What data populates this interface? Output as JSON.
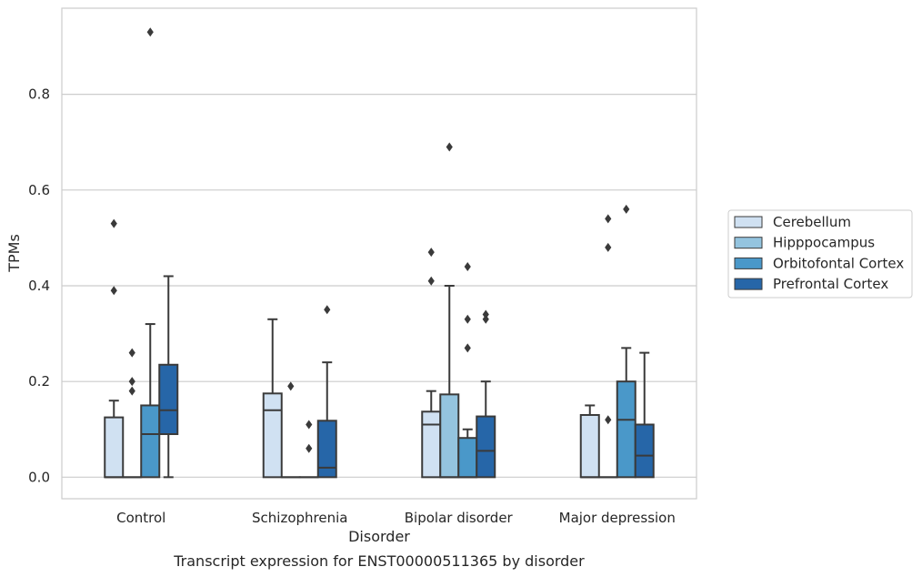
{
  "chart_data": {
    "type": "box",
    "caption": "Transcript expression for ENST00000511365 by disorder",
    "xlabel": "Disorder",
    "ylabel": "TPMs",
    "ylim": [
      -0.045,
      0.98
    ],
    "yticks": [
      0.0,
      0.2,
      0.4,
      0.6,
      0.8
    ],
    "ytick_labels": [
      "0.0",
      "0.2",
      "0.4",
      "0.6",
      "0.8"
    ],
    "grid": "horizontal",
    "legend_position": "right",
    "categories": [
      "Control",
      "Schizophrenia",
      "Bipolar disorder",
      "Major depression"
    ],
    "series": [
      {
        "name": "Cerebellum",
        "color": "#d0e1f2",
        "boxes": [
          {
            "q1": 0.0,
            "median": 0.0,
            "q3": 0.125,
            "whisker_low": 0.0,
            "whisker_high": 0.16,
            "outliers": [
              0.53,
              0.39
            ]
          },
          {
            "q1": 0.0,
            "median": 0.14,
            "q3": 0.175,
            "whisker_low": 0.0,
            "whisker_high": 0.33,
            "outliers": []
          },
          {
            "q1": 0.0,
            "median": 0.11,
            "q3": 0.137,
            "whisker_low": 0.0,
            "whisker_high": 0.18,
            "outliers": [
              0.47,
              0.41
            ]
          },
          {
            "q1": 0.0,
            "median": 0.0,
            "q3": 0.13,
            "whisker_low": 0.0,
            "whisker_high": 0.15,
            "outliers": []
          }
        ]
      },
      {
        "name": "Hipppocampus",
        "color": "#94c4df",
        "boxes": [
          {
            "q1": 0.0,
            "median": 0.0,
            "q3": 0.0,
            "whisker_low": 0.0,
            "whisker_high": 0.0,
            "outliers": [
              0.26,
              0.2,
              0.18
            ]
          },
          {
            "q1": 0.0,
            "median": 0.0,
            "q3": 0.0,
            "whisker_low": 0.0,
            "whisker_high": 0.0,
            "outliers": [
              0.19
            ]
          },
          {
            "q1": 0.0,
            "median": 0.0,
            "q3": 0.173,
            "whisker_low": 0.0,
            "whisker_high": 0.4,
            "outliers": [
              0.69
            ]
          },
          {
            "q1": 0.0,
            "median": 0.0,
            "q3": 0.0,
            "whisker_low": 0.0,
            "whisker_high": 0.0,
            "outliers": [
              0.54,
              0.48,
              0.12
            ]
          }
        ]
      },
      {
        "name": "Orbitofontal Cortex",
        "color": "#4a98c9",
        "boxes": [
          {
            "q1": 0.0,
            "median": 0.09,
            "q3": 0.15,
            "whisker_low": 0.0,
            "whisker_high": 0.32,
            "outliers": [
              0.93
            ]
          },
          {
            "q1": 0.0,
            "median": 0.0,
            "q3": 0.0,
            "whisker_low": 0.0,
            "whisker_high": 0.0,
            "outliers": [
              0.11,
              0.06
            ]
          },
          {
            "q1": 0.0,
            "median": 0.0,
            "q3": 0.082,
            "whisker_low": 0.0,
            "whisker_high": 0.1,
            "outliers": [
              0.44,
              0.33,
              0.27
            ]
          },
          {
            "q1": 0.0,
            "median": 0.12,
            "q3": 0.2,
            "whisker_low": 0.0,
            "whisker_high": 0.27,
            "outliers": [
              0.56
            ]
          }
        ]
      },
      {
        "name": "Prefrontal Cortex",
        "color": "#2666a8",
        "boxes": [
          {
            "q1": 0.09,
            "median": 0.14,
            "q3": 0.235,
            "whisker_low": 0.0,
            "whisker_high": 0.42,
            "outliers": []
          },
          {
            "q1": 0.0,
            "median": 0.02,
            "q3": 0.118,
            "whisker_low": 0.0,
            "whisker_high": 0.24,
            "outliers": [
              0.35
            ]
          },
          {
            "q1": 0.0,
            "median": 0.055,
            "q3": 0.127,
            "whisker_low": 0.0,
            "whisker_high": 0.2,
            "outliers": [
              0.34,
              0.33
            ]
          },
          {
            "q1": 0.0,
            "median": 0.045,
            "q3": 0.11,
            "whisker_low": 0.0,
            "whisker_high": 0.26,
            "outliers": []
          }
        ]
      }
    ]
  }
}
